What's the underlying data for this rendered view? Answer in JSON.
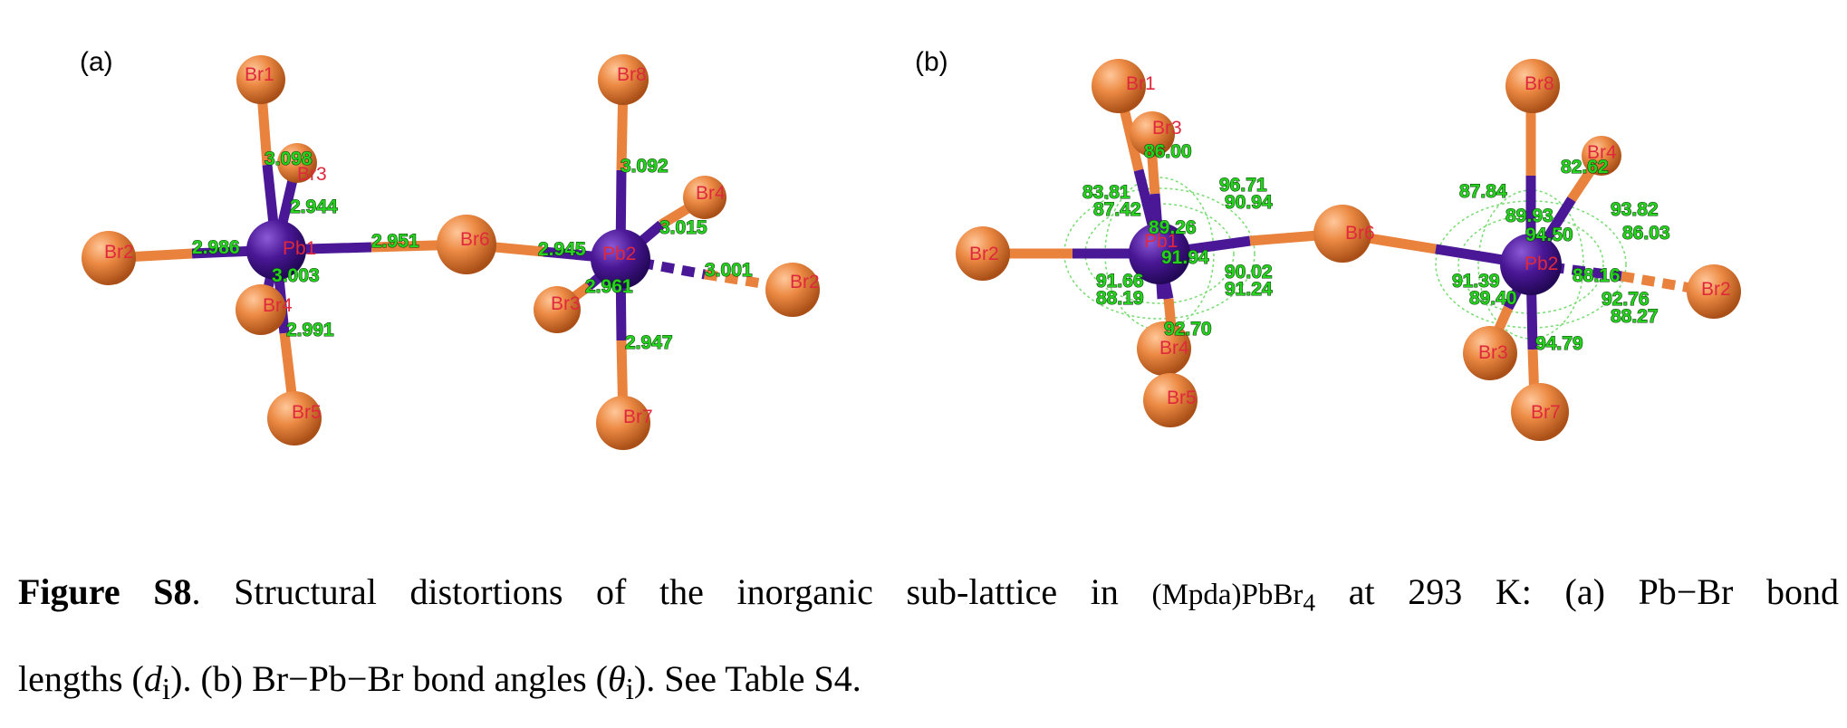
{
  "panel_a": {
    "label": "(a)",
    "atom_labels": [
      "Br1",
      "Br3",
      "Br2",
      "Pb1",
      "Br4",
      "Br5",
      "Br6",
      "Br8",
      "Br4",
      "Pb2",
      "Br3",
      "Br2",
      "Br7"
    ],
    "bond_lengths": [
      "3.098",
      "2.944",
      "2.986",
      "3.003",
      "2.991",
      "2.951",
      "3.092",
      "3.015",
      "2.945",
      "2.961",
      "3.001",
      "2.947"
    ]
  },
  "panel_b": {
    "label": "(b)",
    "atom_labels": [
      "Br1",
      "Br3",
      "Br2",
      "Pb1",
      "Br4",
      "Br5",
      "Br6",
      "Br8",
      "Br4",
      "Pb2",
      "Br3",
      "Br2",
      "Br7"
    ],
    "bond_angles": [
      "86.00",
      "83.81",
      "87.42",
      "96.71",
      "90.94",
      "89.26",
      "91.94",
      "91.66",
      "88.19",
      "90.02",
      "91.24",
      "92.70",
      "82.62",
      "87.84",
      "89.93",
      "93.82",
      "94.50",
      "86.03",
      "88.16",
      "91.39",
      "89.40",
      "92.76",
      "88.27",
      "94.79"
    ]
  },
  "caption": {
    "figure_id": "Figure S8",
    "part1": ". Structural distortions of the inorganic sub-lattice in ",
    "compound": "(Mpda)PbBr",
    "compound_sub": "4",
    "part2": " at 293 K: (a) Pb−Br bond",
    "part3": "lengths (",
    "d_symbol": "d",
    "d_sub": "i",
    "part4": "). (b) Br−Pb−Br bond angles (",
    "theta_symbol": "θ",
    "theta_sub": "i",
    "part5": "). See Table S4."
  },
  "colors": {
    "bromine": "#e8823c",
    "lead": "#4a1796",
    "label_red": "#e0283c",
    "value_green": "#27d21e"
  }
}
